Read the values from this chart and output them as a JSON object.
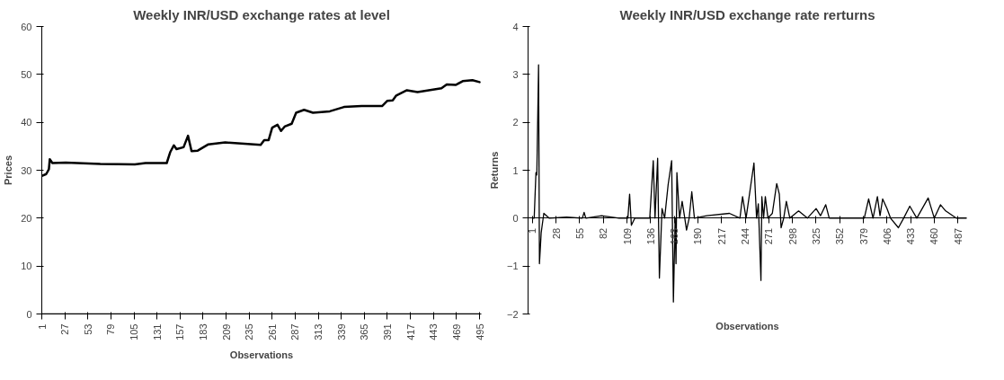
{
  "chart_data": [
    {
      "type": "line",
      "title": "Weekly INR/USD exchange rates at level",
      "xlabel": "Observations",
      "ylabel": "Prices",
      "xlim": [
        1,
        497
      ],
      "xticks": [
        1,
        27,
        53,
        79,
        105,
        131,
        157,
        183,
        209,
        235,
        261,
        287,
        313,
        339,
        365,
        391,
        417,
        443,
        469,
        495
      ],
      "ylim": [
        0,
        60
      ],
      "yticks": [
        0,
        10,
        20,
        30,
        40,
        50,
        60
      ],
      "series": [
        {
          "color": "#000000",
          "x": [
            1,
            6,
            9,
            10,
            13,
            28,
            67,
            106,
            118,
            142,
            146,
            150,
            153,
            161,
            166,
            170,
            177,
            189,
            208,
            248,
            252,
            257,
            261,
            267,
            271,
            275,
            283,
            288,
            297,
            307,
            326,
            342,
            362,
            385,
            391,
            397,
            401,
            413,
            425,
            452,
            458,
            468,
            476,
            487,
            495
          ],
          "values": [
            28.8,
            29.2,
            30.2,
            32.3,
            31.5,
            31.6,
            31.3,
            31.2,
            31.5,
            31.5,
            33.8,
            35.2,
            34.4,
            34.8,
            37.2,
            34.0,
            34.1,
            35.4,
            35.8,
            35.3,
            36.3,
            36.3,
            38.9,
            39.5,
            38.2,
            39.1,
            39.7,
            42.0,
            42.6,
            42.0,
            42.3,
            43.2,
            43.4,
            43.4,
            44.5,
            44.6,
            45.6,
            46.7,
            46.3,
            47.1,
            47.9,
            47.8,
            48.6,
            48.8,
            48.4
          ]
        },
        {
          "color": "#000000",
          "x": [
            1,
            495
          ],
          "values": [
            0,
            0
          ]
        }
      ]
    },
    {
      "type": "line",
      "title": "Weekly INR/USD exchange rate rerturns",
      "xlabel": "Observations",
      "ylabel": "Returns",
      "xlim": [
        -4,
        497
      ],
      "xticks": [
        1,
        28,
        55,
        82,
        109,
        136,
        163,
        190,
        217,
        244,
        271,
        298,
        325,
        352,
        379,
        406,
        433,
        460,
        487
      ],
      "ylim": [
        -2,
        4
      ],
      "yticks": [
        -2,
        -1,
        0,
        1,
        2,
        3,
        4
      ],
      "series": [
        {
          "color": "#000000",
          "x": [
            1,
            3,
            5,
            6,
            8,
            9,
            11,
            14,
            20,
            40,
            58,
            60,
            62,
            80,
            100,
            110,
            112,
            114,
            118,
            135,
            139,
            141,
            144,
            146,
            149,
            152,
            156,
            160,
            162,
            164,
            165,
            166,
            169,
            172,
            175,
            177,
            180,
            183,
            186,
            200,
            226,
            238,
            241,
            245,
            254,
            257,
            259,
            262,
            263,
            265,
            267,
            270,
            275,
            280,
            283,
            285,
            288,
            291,
            295,
            305,
            315,
            325,
            330,
            336,
            340,
            360,
            380,
            385,
            390,
            395,
            398,
            401,
            406,
            410,
            419,
            425,
            432,
            440,
            453,
            460,
            467,
            473,
            485,
            497
          ],
          "values": [
            0,
            0,
            0.95,
            0.9,
            3.2,
            -0.95,
            -0.3,
            0.1,
            0,
            0.02,
            0,
            0.12,
            0,
            0.05,
            0,
            0,
            0.5,
            -0.15,
            0,
            0,
            1.2,
            0,
            1.25,
            -1.25,
            0.2,
            0,
            0.7,
            1.2,
            -1.75,
            0,
            -0.95,
            0.95,
            0,
            0.35,
            0,
            -0.25,
            0,
            0.55,
            0,
            0.05,
            0.1,
            0,
            0.45,
            0,
            1.15,
            0,
            0.3,
            -1.3,
            0.45,
            0,
            0.45,
            0,
            0.1,
            0.72,
            0.5,
            -0.2,
            0,
            0.35,
            0,
            0.15,
            0,
            0.2,
            0.05,
            0.28,
            0,
            0,
            0,
            0.4,
            0,
            0.45,
            0.05,
            0.4,
            0.2,
            0,
            -0.2,
            0,
            0.25,
            0,
            0.42,
            0,
            0.28,
            0.15,
            0,
            0
          ]
        }
      ]
    }
  ]
}
